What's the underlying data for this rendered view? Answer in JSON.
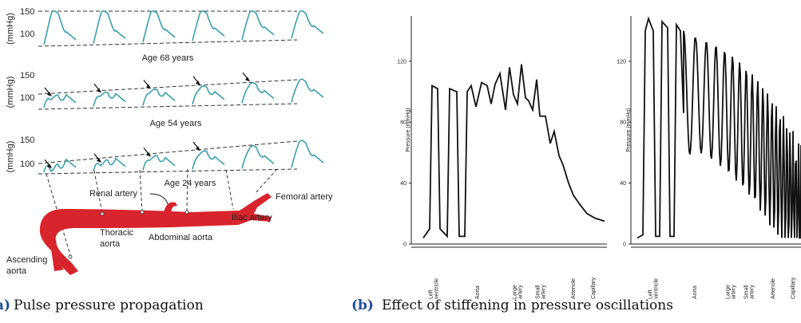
{
  "panel_a": {
    "label": "(a)",
    "caption": "Pulse pressure propagation",
    "rows": [
      {
        "ticks": [
          "150",
          "100"
        ],
        "axis_label": "(mmHg)",
        "age": "Age 68 years"
      },
      {
        "ticks": [
          "150",
          "100"
        ],
        "axis_label": "(mmHg)",
        "age": "Age 54 years"
      },
      {
        "ticks": [
          "150",
          "100"
        ],
        "axis_label": "(mmHg)",
        "age": "Age 24 years"
      }
    ],
    "vessels": {
      "renal": "Renal artery",
      "femoral": "Femoral artery",
      "iliac": "Iliac artery",
      "thoracic": [
        "Thoracic",
        "aorta"
      ],
      "abdominal": "Abdominal aorta",
      "ascending": [
        "Ascending",
        "aorta"
      ]
    }
  },
  "panel_b": {
    "label": "(b)",
    "caption": "Effect of stiffening in pressure oscillations",
    "plots": [
      {
        "ylabel": "Pressure (mmHg)",
        "yticks": [
          "0",
          "40",
          "80",
          "120"
        ],
        "xlabels": [
          [
            "Left",
            "ventricle"
          ],
          [
            "Aorta"
          ],
          [
            "Large",
            "artery"
          ],
          [
            "Small",
            "artery"
          ],
          [
            "Arteriole"
          ],
          [
            "Capillary"
          ]
        ]
      },
      {
        "ylabel": "Pressure (mmHg)",
        "yticks": [
          "0",
          "40",
          "80",
          "120"
        ],
        "xlabels": [
          [
            "Left",
            "ventricle"
          ],
          [
            "Aorta"
          ],
          [
            "Large",
            "artery"
          ],
          [
            "Small",
            "artery"
          ],
          [
            "Arteriole"
          ],
          [
            "Capillary"
          ]
        ]
      }
    ]
  }
}
